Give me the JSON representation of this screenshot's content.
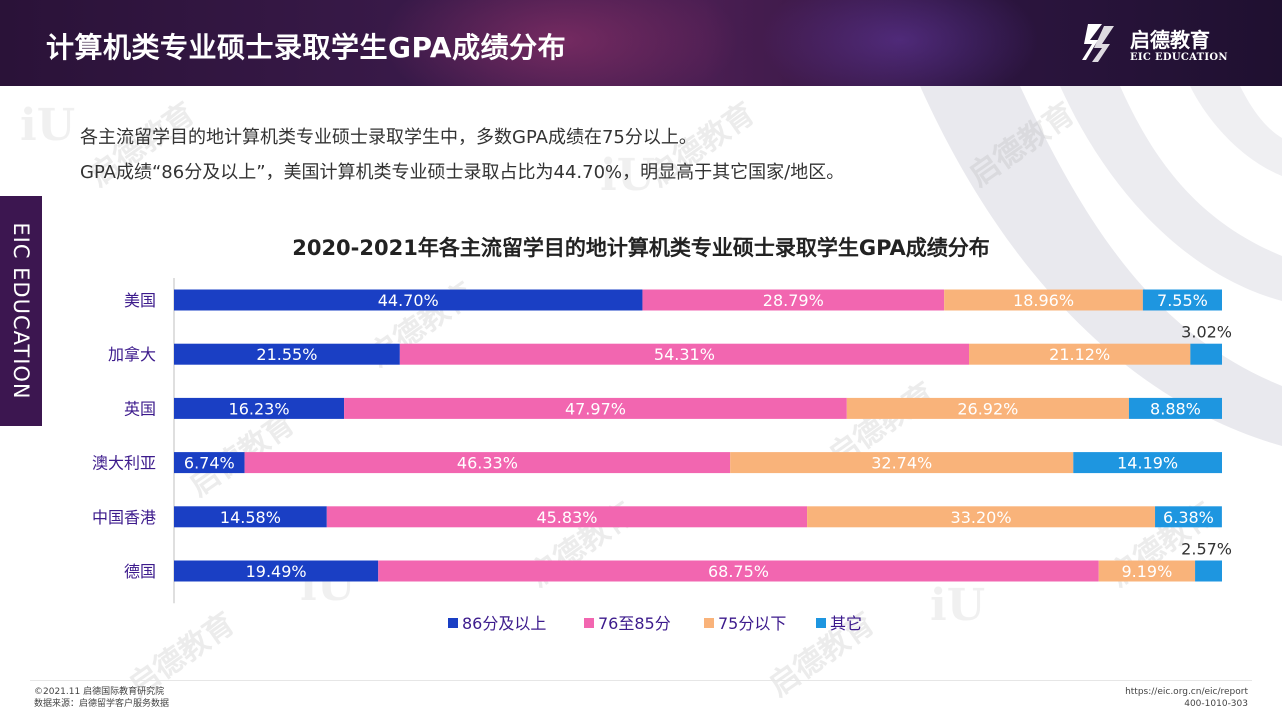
{
  "header": {
    "title": "计算机类专业硕士录取学生GPA成绩分布",
    "logo_cn": "启德教育",
    "logo_en": "EIC EDUCATION"
  },
  "side_label": "EIC EDUCATION",
  "description": {
    "line1": "各主流留学目的地计算机类专业硕士录取学生中，多数GPA成绩在75分以上。",
    "line2": "GPA成绩“86分及以上”，美国计算机类专业硕士录取占比为44.70%，明显高于其它国家/地区。"
  },
  "colors": {
    "s1": "#1a3fc4",
    "s2": "#f266b0",
    "s3": "#f9b37a",
    "s4": "#1e96e0"
  },
  "chart_data": {
    "type": "bar",
    "orientation": "horizontal",
    "stacked": true,
    "title": "2020-2021年各主流留学目的地计算机类专业硕士录取学生GPA成绩分布",
    "categories": [
      "美国",
      "加拿大",
      "英国",
      "澳大利亚",
      "中国香港",
      "德国"
    ],
    "series": [
      {
        "name": "86分及以上",
        "values": [
          44.7,
          21.55,
          16.23,
          6.74,
          14.58,
          19.49
        ],
        "labels": [
          "44.70%",
          "21.55%",
          "16.23%",
          "6.74%",
          "14.58%",
          "19.49%"
        ]
      },
      {
        "name": "76至85分",
        "values": [
          28.79,
          54.31,
          47.97,
          46.33,
          45.83,
          68.75
        ],
        "labels": [
          "28.79%",
          "54.31%",
          "47.97%",
          "46.33%",
          "45.83%",
          "68.75%"
        ]
      },
      {
        "name": "75分以下",
        "values": [
          18.96,
          21.12,
          26.92,
          32.74,
          33.2,
          9.19
        ],
        "labels": [
          "18.96%",
          "21.12%",
          "26.92%",
          "32.74%",
          "33.20%",
          "9.19%"
        ]
      },
      {
        "name": "其它",
        "values": [
          7.55,
          3.02,
          8.88,
          14.19,
          6.38,
          2.57
        ],
        "labels": [
          "7.55%",
          "3.02%",
          "8.88%",
          "14.19%",
          "6.38%",
          "2.57%"
        ]
      }
    ],
    "xlim": [
      0,
      100
    ],
    "legend": "bottom",
    "grid": false
  },
  "footer": {
    "copyright": "©2021.11 启德国际教育研究院",
    "source": "数据来源：启德留学客户服务数据",
    "url": "https://eic.org.cn/eic/report",
    "phone": "400-1010-303"
  }
}
